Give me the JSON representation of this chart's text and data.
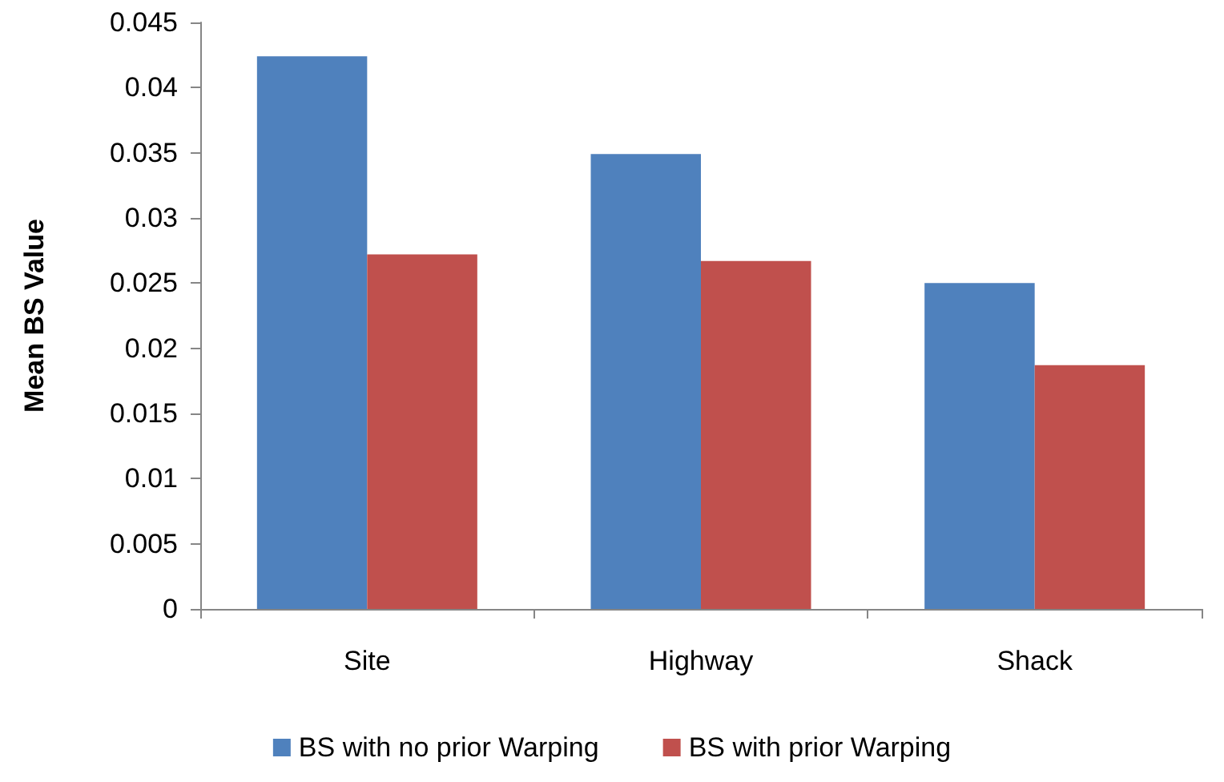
{
  "chart_data": {
    "type": "bar",
    "ylabel": "Mean BS Value",
    "categories": [
      "Site",
      "Highway",
      "Shack"
    ],
    "series": [
      {
        "name": "BS with no prior Warping",
        "color": "#4f81bd",
        "values": [
          0.0424,
          0.0349,
          0.025
        ]
      },
      {
        "name": "BS with prior Warping",
        "color": "#c0504d",
        "values": [
          0.0272,
          0.0267,
          0.0187
        ]
      }
    ],
    "ylim": [
      0,
      0.045
    ],
    "yticks": [
      0,
      0.005,
      0.01,
      0.015,
      0.02,
      0.025,
      0.03,
      0.035,
      0.04,
      0.045
    ],
    "grid": false,
    "legend": "bottom"
  }
}
